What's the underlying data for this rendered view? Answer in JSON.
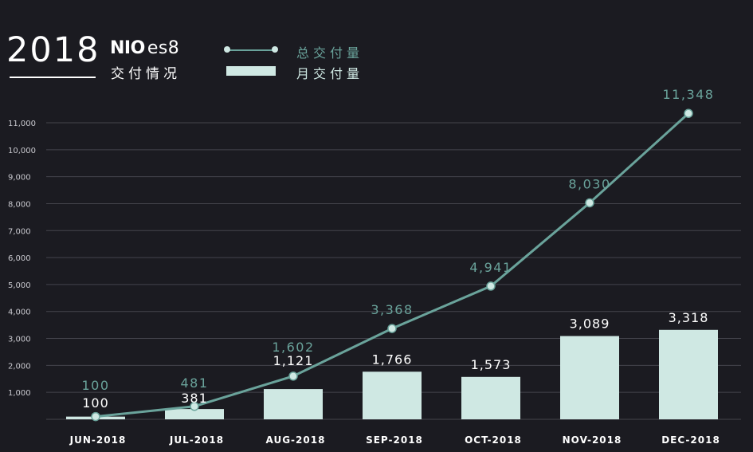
{
  "header": {
    "year": "2018",
    "brand_nio": "NIO",
    "brand_model": "es8",
    "subtitle": "交付情况"
  },
  "legend": {
    "cumulative": "总交付量",
    "monthly": "月交付量"
  },
  "colors": {
    "background": "#1b1b21",
    "line": "#6aa39b",
    "bar": "#cfe8e3",
    "grid": "#44444c",
    "tick": "#c9c9cf",
    "month_label": "#ffffff"
  },
  "chart_data": {
    "type": "bar",
    "categories": [
      "JUN-2018",
      "JUL-2018",
      "AUG-2018",
      "SEP-2018",
      "OCT-2018",
      "NOV-2018",
      "DEC-2018"
    ],
    "series": [
      {
        "name": "月交付量",
        "type": "bar",
        "values": [
          100,
          381,
          1121,
          1766,
          1573,
          3089,
          3318
        ],
        "labels": [
          "100",
          "381",
          "1,121",
          "1,766",
          "1,573",
          "3,089",
          "3,318"
        ]
      },
      {
        "name": "总交付量",
        "type": "line",
        "values": [
          100,
          481,
          1602,
          3368,
          4941,
          8030,
          11348
        ],
        "labels": [
          "100",
          "481",
          "1,602",
          "3,368",
          "4,941",
          "8,030",
          "11,348"
        ]
      }
    ],
    "y_ticks": [
      1000,
      2000,
      3000,
      4000,
      5000,
      6000,
      7000,
      8000,
      9000,
      10000,
      11000
    ],
    "y_tick_labels": [
      "1,000",
      "2,000",
      "3,000",
      "4,000",
      "5,000",
      "6,000",
      "7,000",
      "8,000",
      "9,000",
      "10,000",
      "11,000"
    ],
    "ylim": [
      0,
      11000
    ],
    "grid": true,
    "legend_position": "top"
  }
}
